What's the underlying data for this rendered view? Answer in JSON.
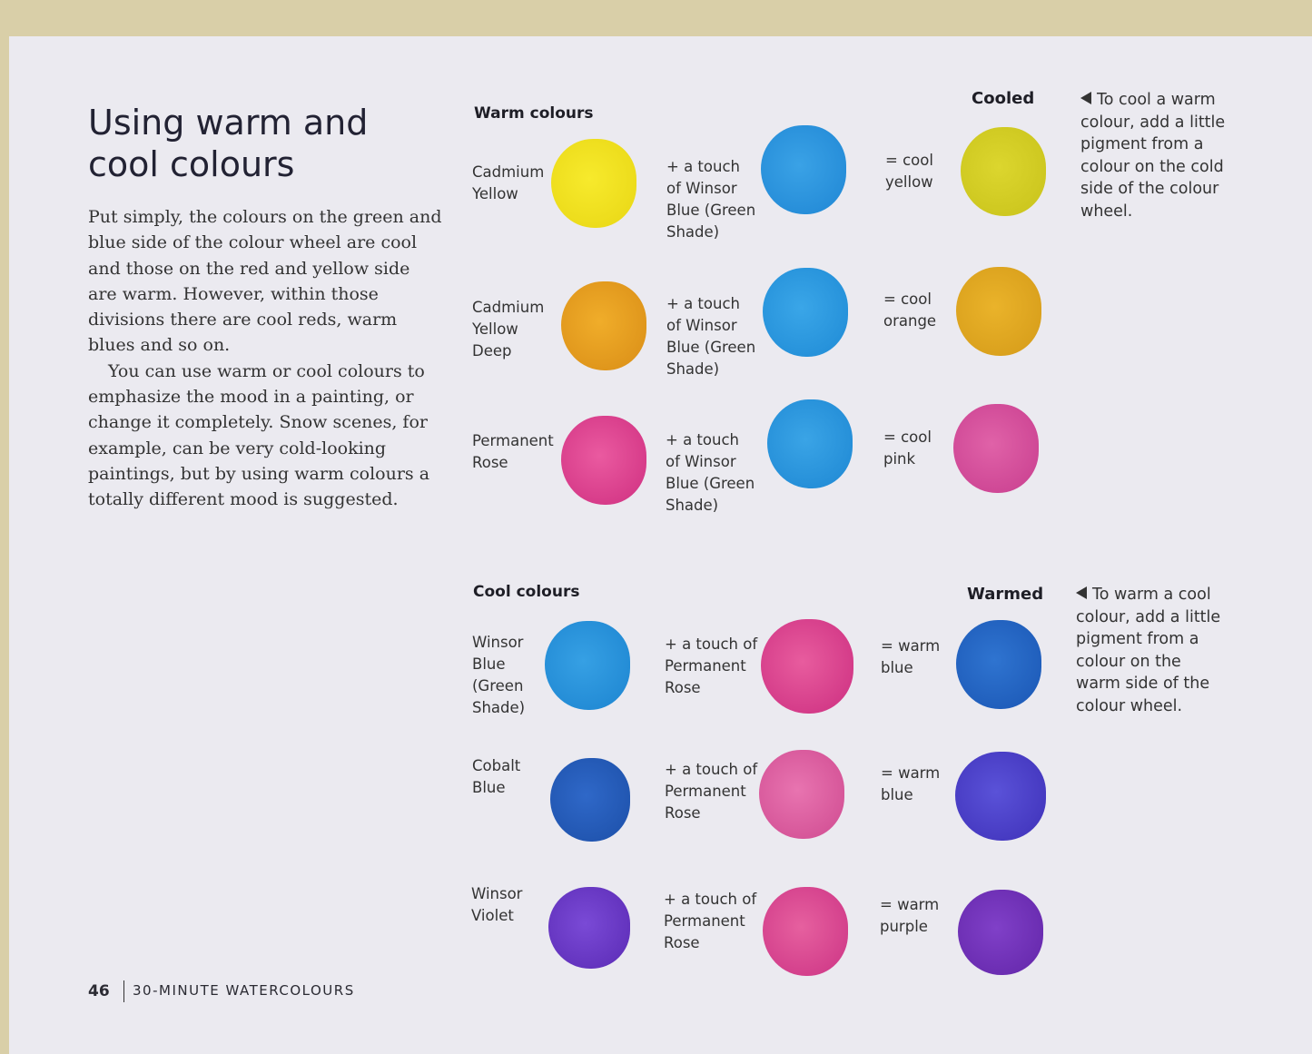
{
  "title": "Using warm and cool colours",
  "body": [
    "Put simply, the colours on the green and blue side of the colour wheel are cool and those on the red and yellow side are warm. However, within those divisions there are cool reds, warm blues and so on.",
    "You can use warm or cool colours to emphasize the mood in a painting, or change it completely. Snow scenes, for example, can be very cold-looking paintings, but by using warm colours a totally different mood is suggested."
  ],
  "sections": [
    {
      "heading": "Warm colours",
      "result_heading": "Cooled",
      "note": "To cool a warm colour, add a little pigment from a colour on the cold side of the colour wheel.",
      "rows": [
        {
          "base": "Cadmium Yellow",
          "add": "+ a touch of Winsor Blue (Green Shade)",
          "result": "= cool yellow"
        },
        {
          "base": "Cadmium Yellow Deep",
          "add": "+ a touch of Winsor Blue (Green Shade)",
          "result": "= cool orange"
        },
        {
          "base": "Permanent Rose",
          "add": "+ a touch of Winsor Blue (Green Shade)",
          "result": "= cool pink"
        }
      ]
    },
    {
      "heading": "Cool colours",
      "result_heading": "Warmed",
      "note": "To warm a cool colour, add a little pigment from a colour on the warm side of the colour wheel.",
      "rows": [
        {
          "base": "Winsor Blue (Green Shade)",
          "add": "+ a touch of Permanent Rose",
          "result": "= warm blue"
        },
        {
          "base": "Cobalt Blue",
          "add": "+ a touch of Permanent Rose",
          "result": "= warm blue"
        },
        {
          "base": "Winsor Violet",
          "add": "+ a touch of Permanent Rose",
          "result": "= warm purple"
        }
      ]
    }
  ],
  "footer": {
    "page_number": "46",
    "running_head": "30-MINUTE WATERCOLOURS"
  }
}
